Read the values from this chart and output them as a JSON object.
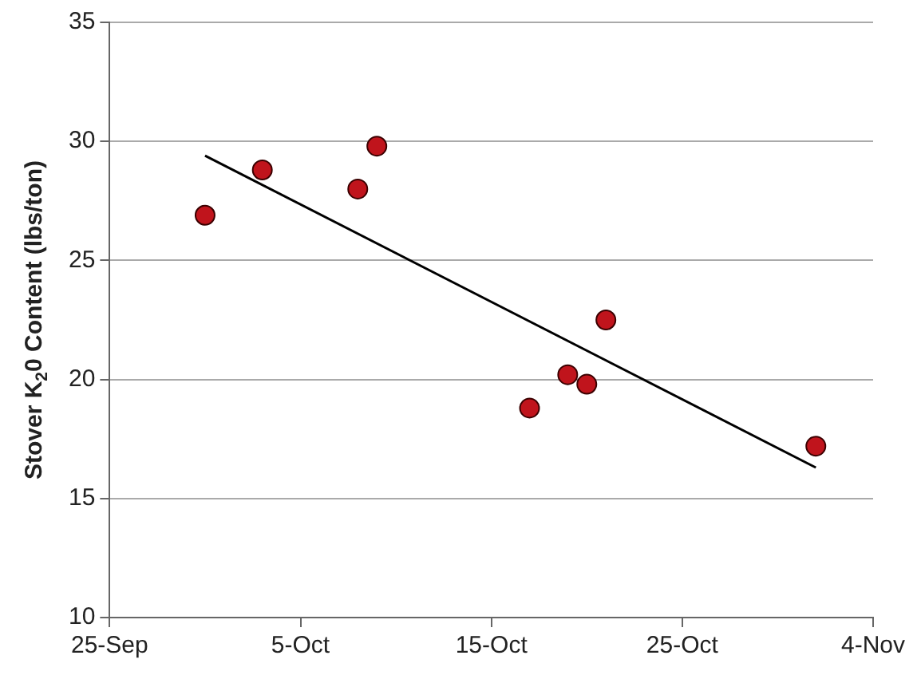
{
  "chart_data": {
    "type": "scatter",
    "ylabel": "Stover K$_{2}$0 Content (lbs/ton)",
    "series": [
      {
        "type": "scatter",
        "color": "#c0141c",
        "x": [
          "--09-30",
          "--10-03",
          "--10-08",
          "--10-09",
          "--10-17",
          "--10-19",
          "--10-20",
          "--10-21",
          "--11-01"
        ],
        "values": [
          26.9,
          28.8,
          28.0,
          29.8,
          18.8,
          20.2,
          19.8,
          22.5,
          17.2
        ]
      },
      {
        "type": "line",
        "color": "#000000",
        "x": [
          "--09-30",
          "--11-01"
        ],
        "values": [
          29.4,
          16.3
        ],
        "marker": "none"
      }
    ],
    "xlim": [
      "--09-25",
      "--11-04"
    ],
    "xticks": [
      {
        "value": "--09-25",
        "label": "25-Sep"
      },
      {
        "value": "--10-05",
        "label": "5-Oct"
      },
      {
        "value": "--10-15",
        "label": "15-Oct"
      },
      {
        "value": "--10-25",
        "label": "25-Oct"
      },
      {
        "value": "--11-04",
        "label": "4-Nov"
      }
    ],
    "ylim": [
      10,
      35
    ],
    "yticks": [
      10,
      15,
      20,
      25,
      30,
      35
    ],
    "grid": "y",
    "marker": "circle",
    "legend": false
  }
}
